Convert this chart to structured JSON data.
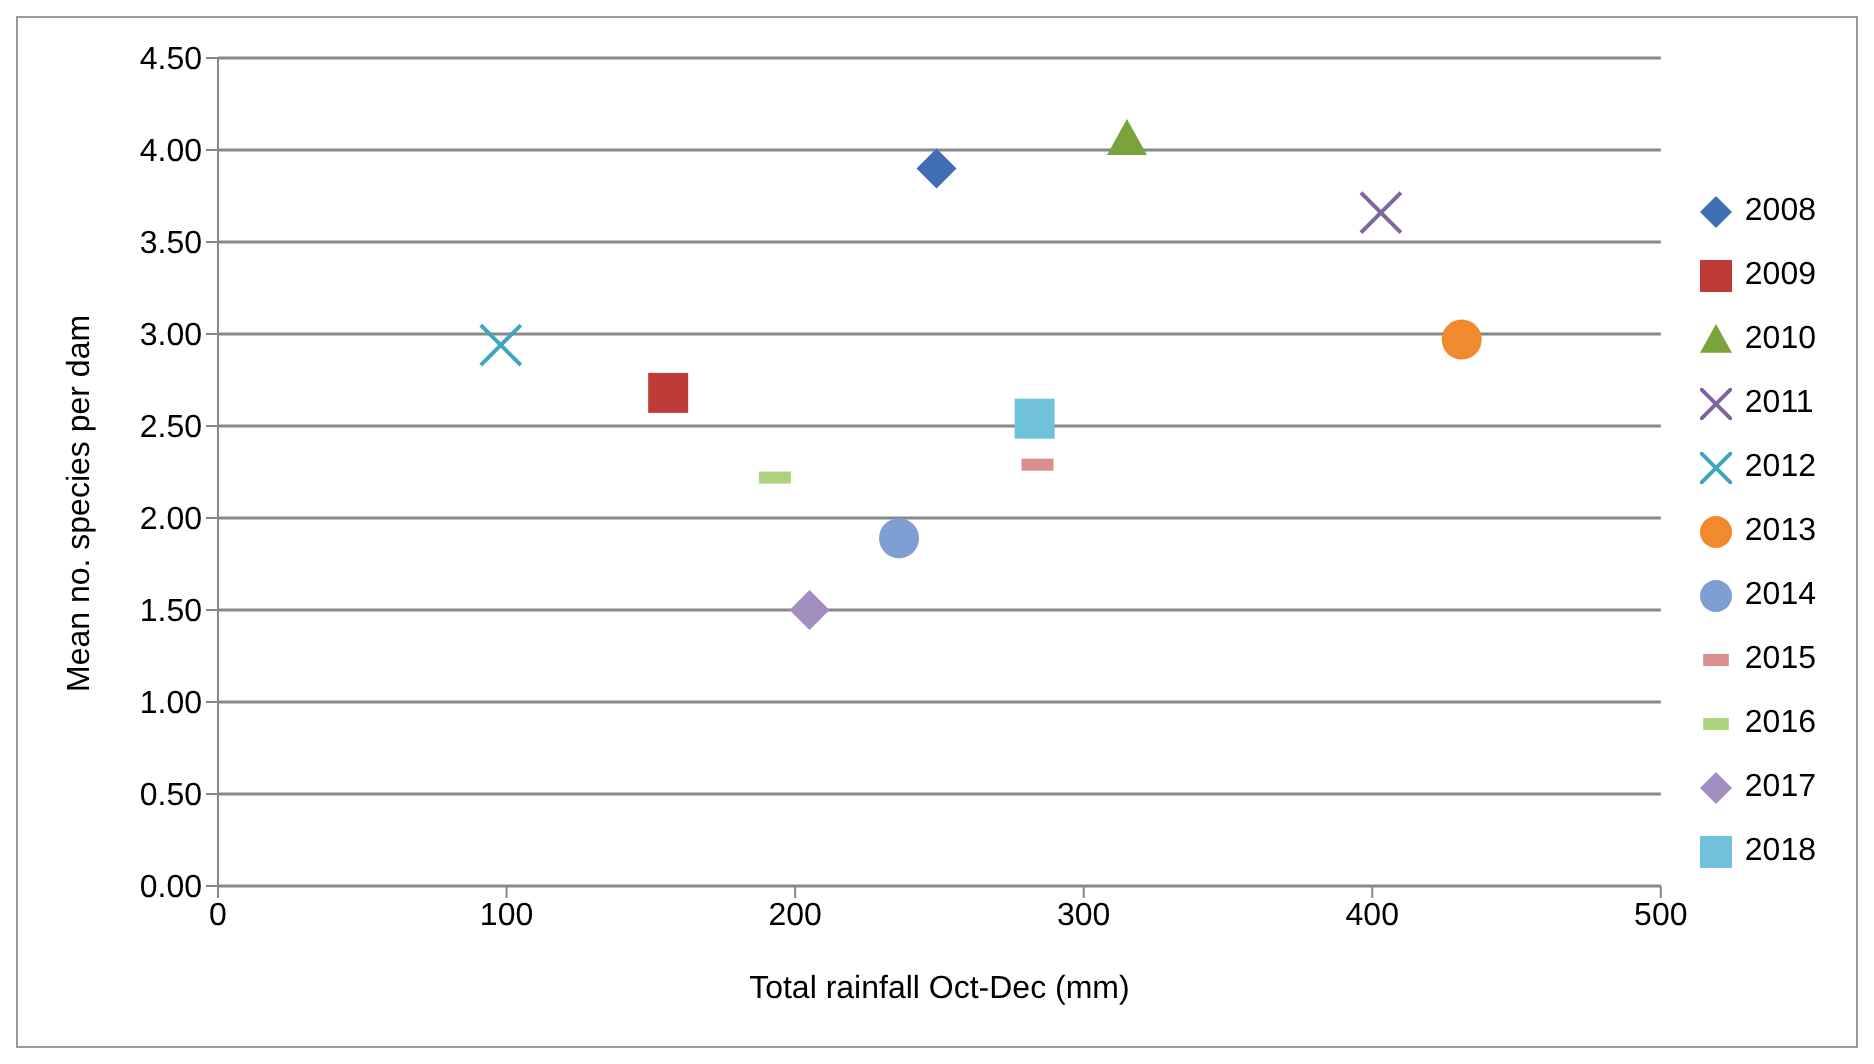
{
  "chart_data": {
    "type": "scatter",
    "xlabel": "Total rainfall Oct-Dec (mm)",
    "ylabel": "Mean no. species per dam",
    "xlim": [
      0,
      500
    ],
    "xticks": [
      0,
      100,
      200,
      300,
      400,
      500
    ],
    "ylim": [
      0,
      4.5
    ],
    "yticks": [
      {
        "value": 0,
        "label": "0.00"
      },
      {
        "value": 0.5,
        "label": "0.50"
      },
      {
        "value": 1,
        "label": "1.00"
      },
      {
        "value": 1.5,
        "label": "1.50"
      },
      {
        "value": 2,
        "label": "2.00"
      },
      {
        "value": 2.5,
        "label": "2.50"
      },
      {
        "value": 3,
        "label": "3.00"
      },
      {
        "value": 3.5,
        "label": "3.50"
      },
      {
        "value": 4,
        "label": "4.00"
      },
      {
        "value": 4.5,
        "label": "4.50"
      }
    ],
    "grid": "y",
    "legend": "right",
    "series": [
      {
        "name": "2008",
        "color": "#3f6eb5",
        "marker": "diamond",
        "x": [
          249
        ],
        "values": [
          3.9
        ]
      },
      {
        "name": "2009",
        "color": "#be3b37",
        "marker": "square",
        "x": [
          156
        ],
        "values": [
          2.68
        ]
      },
      {
        "name": "2010",
        "color": "#7aa33c",
        "marker": "triangle",
        "x": [
          315
        ],
        "values": [
          4.06
        ]
      },
      {
        "name": "2011",
        "color": "#7f66a0",
        "marker": "cross",
        "x": [
          403
        ],
        "values": [
          3.66
        ]
      },
      {
        "name": "2012",
        "color": "#3fa6c0",
        "marker": "cross",
        "x": [
          98
        ],
        "values": [
          2.94
        ]
      },
      {
        "name": "2013",
        "color": "#f08a2c",
        "marker": "circle",
        "x": [
          431
        ],
        "values": [
          2.97
        ]
      },
      {
        "name": "2014",
        "color": "#7f9fd3",
        "marker": "circle",
        "x": [
          236
        ],
        "values": [
          1.89
        ]
      },
      {
        "name": "2015",
        "color": "#d88f8e",
        "marker": "square",
        "x": [
          284
        ],
        "values": [
          2.29
        ]
      },
      {
        "name": "2016",
        "color": "#add27e",
        "marker": "square",
        "x": [
          193
        ],
        "values": [
          2.22
        ]
      },
      {
        "name": "2017",
        "color": "#a18dc0",
        "marker": "diamond",
        "x": [
          205
        ],
        "values": [
          1.5
        ]
      },
      {
        "name": "2018",
        "color": "#6fc1dc",
        "marker": "square",
        "x": [
          283
        ],
        "values": [
          2.54
        ]
      }
    ]
  }
}
